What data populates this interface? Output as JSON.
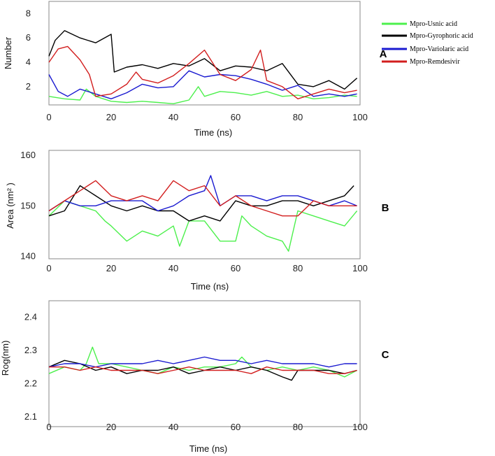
{
  "legend": [
    {
      "name": "Mpro-Usnic acid",
      "color": "#4cf04c"
    },
    {
      "name": "Mpro-Gyrophoric acid",
      "color": "#000000"
    },
    {
      "name": "Mpro-Variolaric acid",
      "color": "#1a1ad0"
    },
    {
      "name": "Mpro-Remdesivir",
      "color": "#d21e1e"
    }
  ],
  "chart_data": [
    {
      "type": "line",
      "panel": "A",
      "xlabel": "Time (ns)",
      "ylabel": "Number",
      "xlim": [
        0,
        100
      ],
      "ylim": [
        0.5,
        9
      ],
      "xticks": [
        "0",
        "20",
        "40",
        "60",
        "80",
        "100"
      ],
      "yticks": [
        "2",
        "4",
        "6",
        "8"
      ],
      "series": [
        {
          "name": "Mpro-Usnic acid",
          "color": "#4cf04c",
          "x": [
            0,
            5,
            10,
            12,
            15,
            20,
            25,
            30,
            35,
            40,
            45,
            48,
            50,
            55,
            60,
            65,
            70,
            75,
            80,
            85,
            90,
            95,
            99
          ],
          "values": [
            1.2,
            1.0,
            0.9,
            1.8,
            1.2,
            0.8,
            0.7,
            0.8,
            0.7,
            0.6,
            0.9,
            2.0,
            1.2,
            1.6,
            1.5,
            1.3,
            1.6,
            1.2,
            1.3,
            1.0,
            1.1,
            1.3,
            1.2
          ]
        },
        {
          "name": "Mpro-Gyrophoric acid",
          "color": "#000000",
          "x": [
            0,
            2,
            5,
            10,
            15,
            20,
            21,
            25,
            30,
            35,
            40,
            45,
            50,
            55,
            60,
            65,
            70,
            75,
            80,
            85,
            90,
            95,
            99
          ],
          "values": [
            4.5,
            5.8,
            6.6,
            6.0,
            5.6,
            6.3,
            3.2,
            3.6,
            3.8,
            3.5,
            3.9,
            3.7,
            4.3,
            3.3,
            3.7,
            3.6,
            3.3,
            3.9,
            2.2,
            2.0,
            2.5,
            1.8,
            2.7
          ]
        },
        {
          "name": "Mpro-Variolaric acid",
          "color": "#1a1ad0",
          "x": [
            0,
            3,
            6,
            10,
            15,
            20,
            25,
            30,
            35,
            40,
            45,
            50,
            55,
            60,
            65,
            70,
            75,
            80,
            85,
            90,
            95,
            99
          ],
          "values": [
            3.0,
            1.6,
            1.2,
            1.8,
            1.4,
            1.0,
            1.5,
            2.2,
            1.9,
            2.0,
            3.3,
            2.8,
            3.0,
            2.9,
            2.6,
            2.2,
            1.7,
            2.1,
            1.2,
            1.4,
            1.2,
            1.4
          ]
        },
        {
          "name": "Mpro-Remdesivir",
          "color": "#d21e1e",
          "x": [
            0,
            3,
            6,
            10,
            13,
            15,
            20,
            25,
            28,
            30,
            35,
            40,
            45,
            50,
            55,
            60,
            65,
            68,
            70,
            75,
            80,
            85,
            90,
            95,
            99
          ],
          "values": [
            4.0,
            5.1,
            5.3,
            4.2,
            3.0,
            1.2,
            1.4,
            2.2,
            3.2,
            2.6,
            2.3,
            2.9,
            3.9,
            5.0,
            3.0,
            2.5,
            3.4,
            5.0,
            2.5,
            2.0,
            1.0,
            1.4,
            1.8,
            1.5,
            1.7
          ]
        }
      ]
    },
    {
      "type": "line",
      "panel": "B",
      "xlabel": "Time (ns)",
      "ylabel": "Area (nm² )",
      "xlim": [
        0,
        100
      ],
      "ylim": [
        139.5,
        161
      ],
      "xticks": [
        "0",
        "20",
        "40",
        "60",
        "80",
        "100"
      ],
      "yticks": [
        "140",
        "150",
        "160"
      ],
      "series": [
        {
          "name": "Mpro-Usnic acid",
          "color": "#4cf04c",
          "x": [
            0,
            5,
            10,
            15,
            18,
            20,
            25,
            30,
            35,
            40,
            42,
            45,
            50,
            55,
            60,
            62,
            65,
            70,
            75,
            77,
            80,
            85,
            90,
            95,
            99
          ],
          "values": [
            148,
            151,
            150,
            149,
            147,
            146,
            143,
            145,
            144,
            146,
            142,
            147,
            147,
            143,
            143,
            148,
            146,
            144,
            143,
            141,
            149,
            148,
            147,
            146,
            149
          ]
        },
        {
          "name": "Mpro-Gyrophoric acid",
          "color": "#000000",
          "x": [
            0,
            5,
            10,
            15,
            20,
            25,
            30,
            35,
            40,
            45,
            50,
            55,
            60,
            65,
            70,
            75,
            80,
            85,
            90,
            95,
            98
          ],
          "values": [
            148,
            149,
            154,
            152,
            150,
            149,
            150,
            149,
            149,
            147,
            148,
            147,
            151,
            150,
            150,
            151,
            151,
            150,
            151,
            152,
            154
          ]
        },
        {
          "name": "Mpro-Variolaric acid",
          "color": "#1a1ad0",
          "x": [
            0,
            5,
            10,
            15,
            20,
            25,
            30,
            35,
            40,
            45,
            50,
            52,
            55,
            60,
            65,
            70,
            75,
            80,
            85,
            90,
            95,
            99
          ],
          "values": [
            149,
            151,
            150,
            150,
            151,
            151,
            151,
            149,
            150,
            152,
            153,
            156,
            150,
            152,
            152,
            151,
            152,
            152,
            151,
            150,
            151,
            150
          ]
        },
        {
          "name": "Mpro-Remdesivir",
          "color": "#d21e1e",
          "x": [
            0,
            5,
            10,
            15,
            20,
            25,
            30,
            35,
            40,
            45,
            50,
            55,
            60,
            65,
            70,
            75,
            80,
            85,
            90,
            95,
            99
          ],
          "values": [
            149,
            151,
            153,
            155,
            152,
            151,
            152,
            151,
            155,
            153,
            154,
            150,
            152,
            150,
            149,
            148,
            148,
            151,
            150,
            150,
            150
          ]
        }
      ]
    },
    {
      "type": "line",
      "panel": "C",
      "xlabel": "Time (ns)",
      "ylabel": "Rog(nm)",
      "xlim": [
        0,
        100
      ],
      "ylim": [
        2.07,
        2.45
      ],
      "xticks": [
        "0",
        "20",
        "40",
        "60",
        "80",
        "100"
      ],
      "yticks": [
        "2.1",
        "2.2",
        "2.3",
        "2.4"
      ],
      "series": [
        {
          "name": "Mpro-Usnic acid",
          "color": "#4cf04c",
          "x": [
            0,
            5,
            10,
            12,
            14,
            16,
            20,
            25,
            30,
            35,
            40,
            45,
            50,
            55,
            60,
            62,
            65,
            70,
            75,
            80,
            85,
            90,
            95,
            99
          ],
          "values": [
            2.23,
            2.25,
            2.24,
            2.26,
            2.31,
            2.26,
            2.26,
            2.25,
            2.24,
            2.23,
            2.25,
            2.24,
            2.25,
            2.25,
            2.26,
            2.28,
            2.25,
            2.24,
            2.25,
            2.24,
            2.25,
            2.24,
            2.22,
            2.24
          ]
        },
        {
          "name": "Mpro-Gyrophoric acid",
          "color": "#000000",
          "x": [
            0,
            5,
            10,
            15,
            20,
            25,
            30,
            35,
            40,
            45,
            50,
            55,
            60,
            65,
            70,
            75,
            78,
            80,
            85,
            90,
            95,
            99
          ],
          "values": [
            2.25,
            2.27,
            2.26,
            2.24,
            2.25,
            2.23,
            2.24,
            2.24,
            2.25,
            2.23,
            2.24,
            2.25,
            2.24,
            2.25,
            2.24,
            2.22,
            2.21,
            2.24,
            2.24,
            2.24,
            2.23,
            2.24
          ]
        },
        {
          "name": "Mpro-Variolaric acid",
          "color": "#1a1ad0",
          "x": [
            0,
            5,
            10,
            15,
            20,
            25,
            30,
            35,
            40,
            45,
            50,
            55,
            60,
            65,
            70,
            75,
            80,
            85,
            90,
            95,
            99
          ],
          "values": [
            2.25,
            2.26,
            2.26,
            2.25,
            2.26,
            2.26,
            2.26,
            2.27,
            2.26,
            2.27,
            2.28,
            2.27,
            2.27,
            2.26,
            2.27,
            2.26,
            2.26,
            2.26,
            2.25,
            2.26,
            2.26
          ]
        },
        {
          "name": "Mpro-Remdesivir",
          "color": "#d21e1e",
          "x": [
            0,
            5,
            10,
            15,
            20,
            25,
            30,
            35,
            40,
            45,
            50,
            55,
            60,
            65,
            70,
            75,
            80,
            85,
            90,
            95,
            99
          ],
          "values": [
            2.25,
            2.25,
            2.24,
            2.25,
            2.24,
            2.24,
            2.24,
            2.23,
            2.24,
            2.25,
            2.24,
            2.24,
            2.24,
            2.23,
            2.25,
            2.24,
            2.24,
            2.24,
            2.23,
            2.23,
            2.24
          ]
        }
      ]
    }
  ]
}
